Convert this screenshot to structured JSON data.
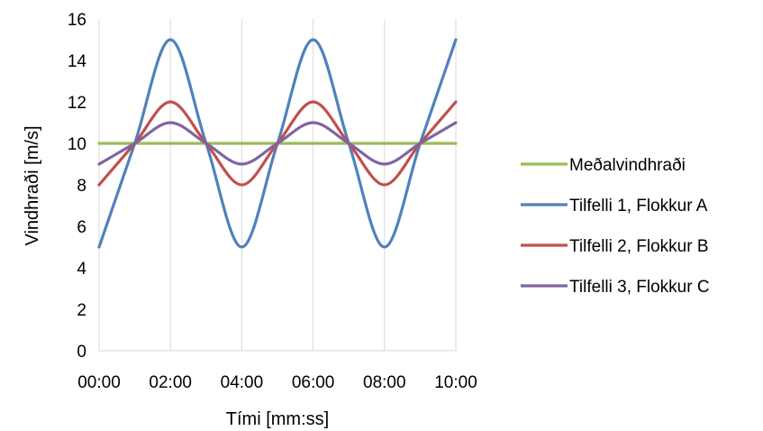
{
  "chart_data": {
    "type": "line",
    "xlabel": "Tími [mm:ss]",
    "ylabel": "Vindhraði [m/s]",
    "xlim": [
      0,
      600
    ],
    "ylim": [
      0,
      16
    ],
    "x_tick_values": [
      0,
      120,
      240,
      360,
      480,
      600
    ],
    "x_tick_labels": [
      "00:00",
      "02:00",
      "04:00",
      "06:00",
      "08:00",
      "10:00"
    ],
    "y_ticks": [
      0,
      2,
      4,
      6,
      8,
      10,
      12,
      14,
      16
    ],
    "grid": "vertical",
    "legend_position": "right",
    "series": [
      {
        "name": "Meðalvindhraði",
        "color": "#9BBB59",
        "x": [
          0,
          600
        ],
        "values": [
          10,
          10
        ]
      },
      {
        "name": "Tilfelli 1, Flokkur A",
        "color": "#4F81BD",
        "x": [
          0,
          60,
          120,
          180,
          240,
          300,
          360,
          420,
          480,
          540,
          600
        ],
        "values": [
          5,
          10,
          15,
          10,
          5,
          10,
          15,
          10,
          5,
          10,
          15
        ]
      },
      {
        "name": "Tilfelli 2, Flokkur B",
        "color": "#C0504D",
        "x": [
          0,
          60,
          120,
          180,
          240,
          300,
          360,
          420,
          480,
          540,
          600
        ],
        "values": [
          8,
          10,
          12,
          10,
          8,
          10,
          12,
          10,
          8,
          10,
          12
        ]
      },
      {
        "name": "Tilfelli 3, Flokkur C",
        "color": "#8064A2",
        "x": [
          0,
          60,
          120,
          180,
          240,
          300,
          360,
          420,
          480,
          540,
          600
        ],
        "values": [
          9,
          10,
          11,
          10,
          9,
          10,
          11,
          10,
          9,
          10,
          11
        ]
      }
    ]
  }
}
